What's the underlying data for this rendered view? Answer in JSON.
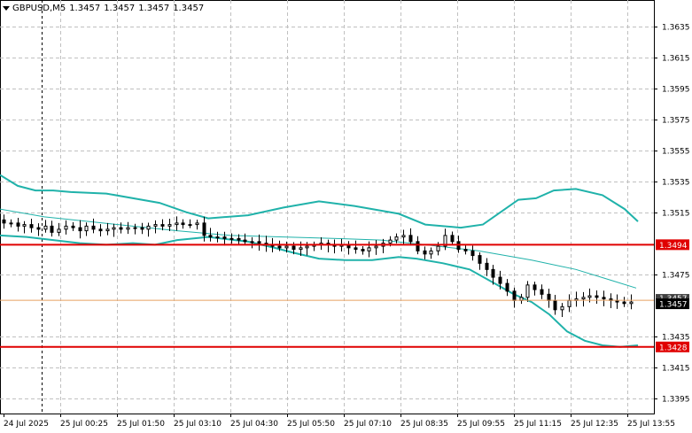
{
  "header": {
    "symbol_tf": "GBPUSD,M5",
    "ohlc": [
      "1.3457",
      "1.3457",
      "1.3457",
      "1.3457"
    ]
  },
  "colors": {
    "background": "#ffffff",
    "grid": "#c0c0c0",
    "candle": "#000000",
    "bollinger": "#20b2aa",
    "ma": "#20b2aa",
    "level_line": "#e00000",
    "price_line": "#e8a060",
    "current_tag_bg": "#000000"
  },
  "chart_data": {
    "type": "candlestick",
    "title": "GBPUSD,M5",
    "ylim": [
      1.3385,
      1.3652
    ],
    "y_ticks": [
      "1.3635",
      "1.3615",
      "1.3595",
      "1.3575",
      "1.3555",
      "1.3535",
      "1.3515",
      "1.3475",
      "1.3435",
      "1.3415",
      "1.3395"
    ],
    "x_ticks": [
      "24 Jul 2025",
      "25 Jul 00:25",
      "25 Jul 01:50",
      "25 Jul 03:10",
      "25 Jul 04:30",
      "25 Jul 05:50",
      "25 Jul 07:10",
      "25 Jul 08:35",
      "25 Jul 09:55",
      "25 Jul 11:15",
      "25 Jul 12:35",
      "25 Jul 13:55"
    ],
    "close_series": [
      1.3508,
      1.3508,
      1.3506,
      1.3507,
      1.3505,
      1.3504,
      1.3506,
      1.3502,
      1.3504,
      1.3506,
      1.3505,
      1.3503,
      1.3506,
      1.3504,
      1.3503,
      1.3504,
      1.3505,
      1.3504,
      1.3505,
      1.3505,
      1.3504,
      1.3506,
      1.3507,
      1.3506,
      1.3507,
      1.3508,
      1.3507,
      1.3507,
      1.3508,
      1.35,
      1.3499,
      1.3499,
      1.3498,
      1.3498,
      1.3497,
      1.3496,
      1.3496,
      1.3495,
      1.3494,
      1.3493,
      1.3492,
      1.3493,
      1.3491,
      1.3492,
      1.3493,
      1.3494,
      1.3495,
      1.3494,
      1.3493,
      1.3494,
      1.3492,
      1.3491,
      1.349,
      1.3492,
      1.3493,
      1.3495,
      1.3497,
      1.3499,
      1.35,
      1.3496,
      1.349,
      1.3488,
      1.349,
      1.3493,
      1.35,
      1.3496,
      1.3491,
      1.349,
      1.3487,
      1.3482,
      1.3478,
      1.3473,
      1.3469,
      1.3464,
      1.3458,
      1.346,
      1.3468,
      1.3465,
      1.3462,
      1.3458,
      1.3452,
      1.3454,
      1.3458,
      1.3459,
      1.346,
      1.3461,
      1.346,
      1.3459,
      1.3458,
      1.3457,
      1.3456,
      1.3457
    ],
    "bollinger_upper": [
      [
        0,
        1.3539
      ],
      [
        20,
        1.3532
      ],
      [
        40,
        1.3529
      ],
      [
        60,
        1.3529
      ],
      [
        80,
        1.3528
      ],
      [
        120,
        1.3527
      ],
      [
        180,
        1.3521
      ],
      [
        210,
        1.3515
      ],
      [
        235,
        1.3511
      ],
      [
        280,
        1.3513
      ],
      [
        320,
        1.3518
      ],
      [
        360,
        1.3522
      ],
      [
        400,
        1.3519
      ],
      [
        450,
        1.3514
      ],
      [
        480,
        1.3507
      ],
      [
        520,
        1.3505
      ],
      [
        545,
        1.3507
      ],
      [
        565,
        1.3515
      ],
      [
        585,
        1.3523
      ],
      [
        605,
        1.3524
      ],
      [
        625,
        1.3529
      ],
      [
        650,
        1.353
      ],
      [
        680,
        1.3526
      ],
      [
        705,
        1.3517
      ],
      [
        720,
        1.3509
      ]
    ],
    "bollinger_lower": [
      [
        0,
        1.35
      ],
      [
        30,
        1.3499
      ],
      [
        60,
        1.3497
      ],
      [
        90,
        1.3495
      ],
      [
        120,
        1.3494
      ],
      [
        150,
        1.3495
      ],
      [
        175,
        1.3494
      ],
      [
        200,
        1.3497
      ],
      [
        235,
        1.3499
      ],
      [
        280,
        1.3496
      ],
      [
        310,
        1.3492
      ],
      [
        330,
        1.3489
      ],
      [
        360,
        1.3485
      ],
      [
        390,
        1.3484
      ],
      [
        420,
        1.3484
      ],
      [
        450,
        1.3486
      ],
      [
        470,
        1.3485
      ],
      [
        500,
        1.3482
      ],
      [
        530,
        1.3478
      ],
      [
        555,
        1.347
      ],
      [
        580,
        1.3462
      ],
      [
        600,
        1.3457
      ],
      [
        620,
        1.3449
      ],
      [
        640,
        1.3438
      ],
      [
        660,
        1.3432
      ],
      [
        680,
        1.3429
      ],
      [
        700,
        1.3428
      ],
      [
        720,
        1.3429
      ]
    ],
    "moving_average": [
      [
        0,
        1.3517
      ],
      [
        50,
        1.3512
      ],
      [
        100,
        1.3509
      ],
      [
        150,
        1.3506
      ],
      [
        200,
        1.3503
      ],
      [
        260,
        1.35
      ],
      [
        320,
        1.3499
      ],
      [
        380,
        1.3498
      ],
      [
        430,
        1.3497
      ],
      [
        480,
        1.3494
      ],
      [
        540,
        1.349
      ],
      [
        600,
        1.3484
      ],
      [
        650,
        1.3478
      ],
      [
        690,
        1.3471
      ],
      [
        718,
        1.3466
      ]
    ],
    "levels": [
      {
        "value": 1.3494,
        "label": "1.3494"
      },
      {
        "value": 1.3428,
        "label": "1.3428"
      }
    ],
    "current_price": {
      "value": 1.3457,
      "label": "1.3457",
      "shadow_label": "1.3457"
    },
    "grid": true,
    "session_divider_label": "24 Jul 2025"
  }
}
